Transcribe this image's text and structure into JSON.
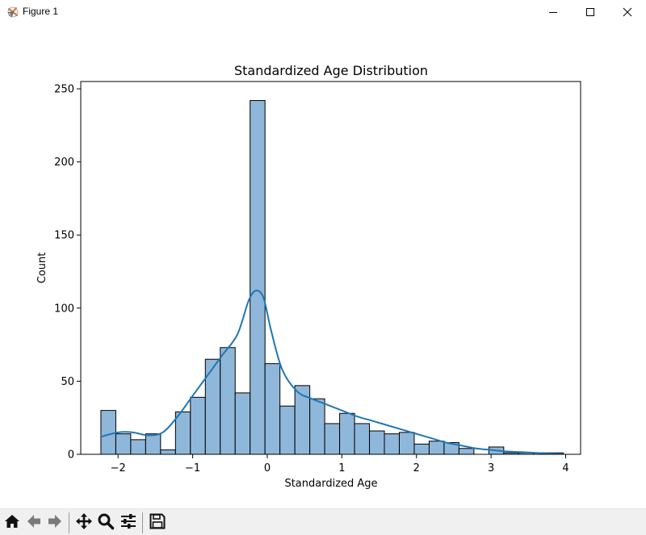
{
  "window": {
    "title": "Figure 1"
  },
  "icons": {
    "app": "matplotlib-figure-icon",
    "minimize": "minimize-icon",
    "maximize": "maximize-icon",
    "close": "close-icon",
    "home": "home-icon",
    "back": "arrow-left-icon",
    "forward": "arrow-right-icon",
    "pan": "move-arrows-icon",
    "zoom": "magnifier-icon",
    "configure": "sliders-icon",
    "save": "floppy-disk-icon"
  },
  "colors": {
    "bar_fill": "#8fb7da",
    "bar_edge": "#000000",
    "kde_line": "#1f77b4"
  },
  "chart_data": {
    "type": "bar",
    "title": "Standardized Age Distribution",
    "xlabel": "Standardized Age",
    "ylabel": "Count",
    "xlim": [
      -2.5,
      4.2
    ],
    "ylim": [
      0,
      255
    ],
    "xticks": [
      -2,
      -1,
      0,
      1,
      2,
      3,
      4
    ],
    "xtick_labels": [
      "−2",
      "−1",
      "0",
      "1",
      "2",
      "3",
      "4"
    ],
    "yticks": [
      0,
      50,
      100,
      150,
      200,
      250
    ],
    "ytick_labels": [
      "0",
      "50",
      "100",
      "150",
      "200",
      "250"
    ],
    "grid": false,
    "legend": "none",
    "bin_edges": [
      -2.23,
      -2.03,
      -1.83,
      -1.63,
      -1.43,
      -1.23,
      -1.03,
      -0.83,
      -0.63,
      -0.43,
      -0.23,
      -0.03,
      0.17,
      0.37,
      0.57,
      0.77,
      0.97,
      1.17,
      1.37,
      1.57,
      1.77,
      1.97,
      2.17,
      2.37,
      2.57,
      2.77,
      2.97,
      3.17,
      3.37,
      3.57,
      3.77,
      3.97
    ],
    "counts": [
      30,
      14,
      10,
      14,
      3,
      29,
      39,
      65,
      73,
      42,
      242,
      62,
      33,
      47,
      38,
      21,
      28,
      21,
      16,
      14,
      15,
      7,
      9,
      8,
      4,
      0,
      5,
      1,
      1,
      1,
      1
    ],
    "kde": {
      "x": [
        -2.23,
        -2.0,
        -1.8,
        -1.6,
        -1.4,
        -1.2,
        -1.0,
        -0.8,
        -0.6,
        -0.4,
        -0.25,
        -0.15,
        -0.05,
        0.05,
        0.2,
        0.4,
        0.6,
        0.8,
        1.0,
        1.2,
        1.4,
        1.6,
        1.8,
        2.0,
        2.2,
        2.4,
        2.6,
        2.8,
        3.0,
        3.2,
        3.4,
        3.6,
        3.8,
        3.97
      ],
      "y": [
        12,
        15,
        15,
        13,
        15,
        26,
        40,
        54,
        68,
        82,
        105,
        112,
        107,
        85,
        58,
        43,
        38,
        34,
        30,
        26,
        23,
        20,
        17,
        14,
        11,
        8,
        6,
        4,
        3,
        2,
        1.5,
        1,
        0.5,
        0.3
      ]
    }
  }
}
